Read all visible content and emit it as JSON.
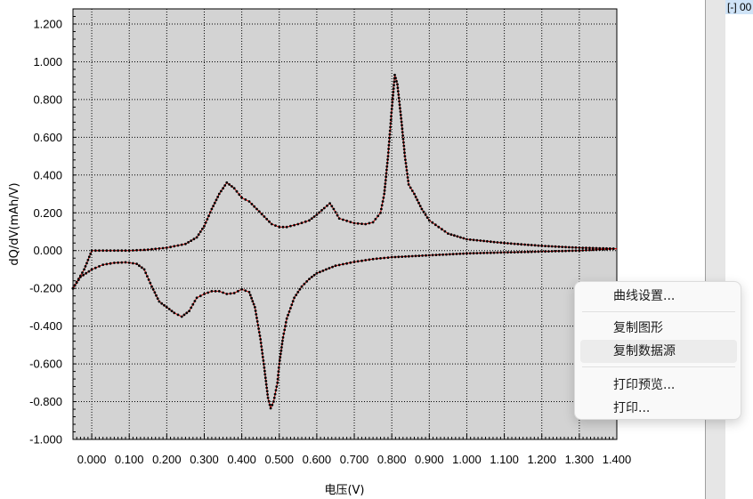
{
  "chart_data": {
    "type": "line",
    "title": "",
    "xlabel": "电压(V)",
    "ylabel": "dQ/dV(mAh/V)",
    "xlim": [
      -0.05,
      1.4
    ],
    "ylim": [
      -1.0,
      1.28
    ],
    "x_ticks": [
      "0.000",
      "0.100",
      "0.200",
      "0.300",
      "0.400",
      "0.500",
      "0.600",
      "0.700",
      "0.800",
      "0.900",
      "1.000",
      "1.100",
      "1.200",
      "1.300",
      "1.400"
    ],
    "y_ticks": [
      "1.200",
      "1.000",
      "0.800",
      "0.600",
      "0.400",
      "0.200",
      "0.000",
      "-0.200",
      "-0.400",
      "-0.600",
      "-0.800",
      "-1.000"
    ],
    "grid": true,
    "line_color": "#e00000",
    "marker_color": "#000000",
    "plot_background": "#d3d3d3",
    "series": [
      {
        "points": [
          [
            -0.05,
            -0.2
          ],
          [
            -0.02,
            -0.1
          ],
          [
            0.0,
            0.0
          ],
          [
            0.05,
            0.0
          ],
          [
            0.1,
            0.0
          ],
          [
            0.15,
            0.005
          ],
          [
            0.2,
            0.015
          ],
          [
            0.25,
            0.035
          ],
          [
            0.28,
            0.07
          ],
          [
            0.3,
            0.13
          ],
          [
            0.32,
            0.22
          ],
          [
            0.34,
            0.3
          ],
          [
            0.36,
            0.36
          ],
          [
            0.38,
            0.33
          ],
          [
            0.4,
            0.28
          ],
          [
            0.42,
            0.26
          ],
          [
            0.44,
            0.22
          ],
          [
            0.46,
            0.18
          ],
          [
            0.48,
            0.14
          ],
          [
            0.5,
            0.125
          ],
          [
            0.52,
            0.125
          ],
          [
            0.55,
            0.14
          ],
          [
            0.58,
            0.16
          ],
          [
            0.6,
            0.19
          ],
          [
            0.62,
            0.225
          ],
          [
            0.635,
            0.25
          ],
          [
            0.645,
            0.22
          ],
          [
            0.66,
            0.17
          ],
          [
            0.7,
            0.145
          ],
          [
            0.73,
            0.14
          ],
          [
            0.75,
            0.15
          ],
          [
            0.77,
            0.2
          ],
          [
            0.78,
            0.3
          ],
          [
            0.79,
            0.5
          ],
          [
            0.8,
            0.75
          ],
          [
            0.808,
            0.93
          ],
          [
            0.815,
            0.88
          ],
          [
            0.825,
            0.7
          ],
          [
            0.835,
            0.5
          ],
          [
            0.845,
            0.35
          ],
          [
            0.86,
            0.3
          ],
          [
            0.88,
            0.22
          ],
          [
            0.9,
            0.16
          ],
          [
            0.95,
            0.09
          ],
          [
            1.0,
            0.06
          ],
          [
            1.1,
            0.04
          ],
          [
            1.2,
            0.025
          ],
          [
            1.3,
            0.015
          ],
          [
            1.4,
            0.01
          ]
        ]
      },
      {
        "points": [
          [
            -0.05,
            -0.2
          ],
          [
            -0.03,
            -0.14
          ],
          [
            0.0,
            -0.1
          ],
          [
            0.03,
            -0.075
          ],
          [
            0.06,
            -0.065
          ],
          [
            0.09,
            -0.062
          ],
          [
            0.12,
            -0.07
          ],
          [
            0.14,
            -0.1
          ],
          [
            0.16,
            -0.19
          ],
          [
            0.18,
            -0.27
          ],
          [
            0.2,
            -0.3
          ],
          [
            0.22,
            -0.33
          ],
          [
            0.24,
            -0.35
          ],
          [
            0.26,
            -0.32
          ],
          [
            0.28,
            -0.25
          ],
          [
            0.3,
            -0.23
          ],
          [
            0.32,
            -0.215
          ],
          [
            0.34,
            -0.215
          ],
          [
            0.36,
            -0.23
          ],
          [
            0.38,
            -0.225
          ],
          [
            0.4,
            -0.205
          ],
          [
            0.42,
            -0.22
          ],
          [
            0.435,
            -0.3
          ],
          [
            0.45,
            -0.47
          ],
          [
            0.46,
            -0.62
          ],
          [
            0.47,
            -0.78
          ],
          [
            0.477,
            -0.835
          ],
          [
            0.485,
            -0.8
          ],
          [
            0.495,
            -0.7
          ],
          [
            0.5,
            -0.6
          ],
          [
            0.51,
            -0.46
          ],
          [
            0.52,
            -0.36
          ],
          [
            0.54,
            -0.25
          ],
          [
            0.56,
            -0.19
          ],
          [
            0.58,
            -0.15
          ],
          [
            0.6,
            -0.12
          ],
          [
            0.65,
            -0.08
          ],
          [
            0.7,
            -0.06
          ],
          [
            0.75,
            -0.045
          ],
          [
            0.8,
            -0.035
          ],
          [
            0.9,
            -0.025
          ],
          [
            1.0,
            -0.015
          ],
          [
            1.1,
            -0.01
          ],
          [
            1.2,
            -0.005
          ],
          [
            1.3,
            0.0
          ],
          [
            1.4,
            0.01
          ]
        ]
      }
    ]
  },
  "context_menu": {
    "items": [
      "曲线设置...",
      "复制图形",
      "复制数据源",
      "打印预览...",
      "打印..."
    ],
    "hovered_index": 2
  },
  "right_panel": {
    "tree_tag": "[-] 00"
  }
}
